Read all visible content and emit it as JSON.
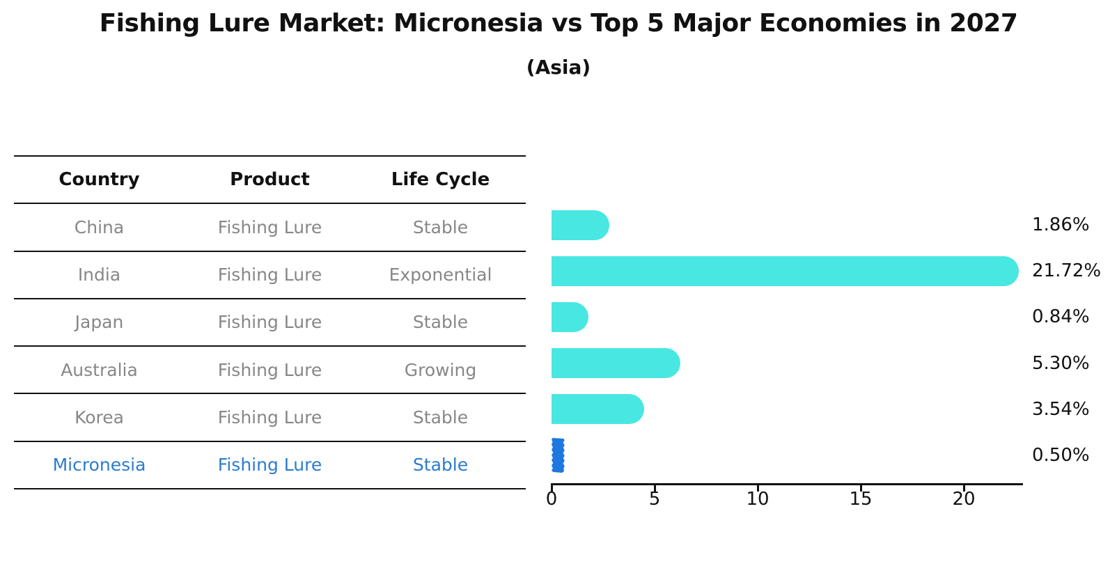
{
  "title": "Fishing Lure Market: Micronesia vs Top 5 Major Economies in 2027",
  "subtitle": "(Asia)",
  "table": {
    "headers": [
      "Country",
      "Product",
      "Life Cycle"
    ],
    "rows": [
      {
        "country": "China",
        "product": "Fishing Lure",
        "life_cycle": "Stable",
        "highlight": false
      },
      {
        "country": "India",
        "product": "Fishing Lure",
        "life_cycle": "Exponential",
        "highlight": false
      },
      {
        "country": "Japan",
        "product": "Fishing Lure",
        "life_cycle": "Stable",
        "highlight": false
      },
      {
        "country": "Australia",
        "product": "Fishing Lure",
        "life_cycle": "Growing",
        "highlight": false
      },
      {
        "country": "Korea",
        "product": "Fishing Lure",
        "life_cycle": "Stable",
        "highlight": false
      },
      {
        "country": "Micronesia",
        "product": "Fishing Lure",
        "life_cycle": "Stable",
        "highlight": true
      }
    ]
  },
  "chart_data": {
    "type": "bar",
    "orientation": "horizontal",
    "title": "Fishing Lure Market: Micronesia vs Top 5 Major Economies in 2027",
    "subtitle": "(Asia)",
    "categories": [
      "China",
      "India",
      "Japan",
      "Australia",
      "Korea",
      "Micronesia"
    ],
    "values": [
      1.86,
      21.72,
      0.84,
      5.3,
      3.54,
      0.5
    ],
    "data_labels": [
      "1.86%",
      "21.72%",
      "0.84%",
      "5.30%",
      "3.54%",
      "0.50%"
    ],
    "xlabel": "",
    "ylabel": "",
    "xlim": [
      0,
      22.8
    ],
    "xticks": [
      0,
      5,
      10,
      15,
      20
    ],
    "grid": false,
    "legend": "none",
    "highlight_index": 5
  },
  "colors": {
    "bar_cyan": "#48e7e2",
    "bar_highlight_blue": "#1e78e0",
    "highlight_text_blue": "#2b7ccc",
    "table_text_gray": "#878787",
    "axis_black": "#111111"
  }
}
